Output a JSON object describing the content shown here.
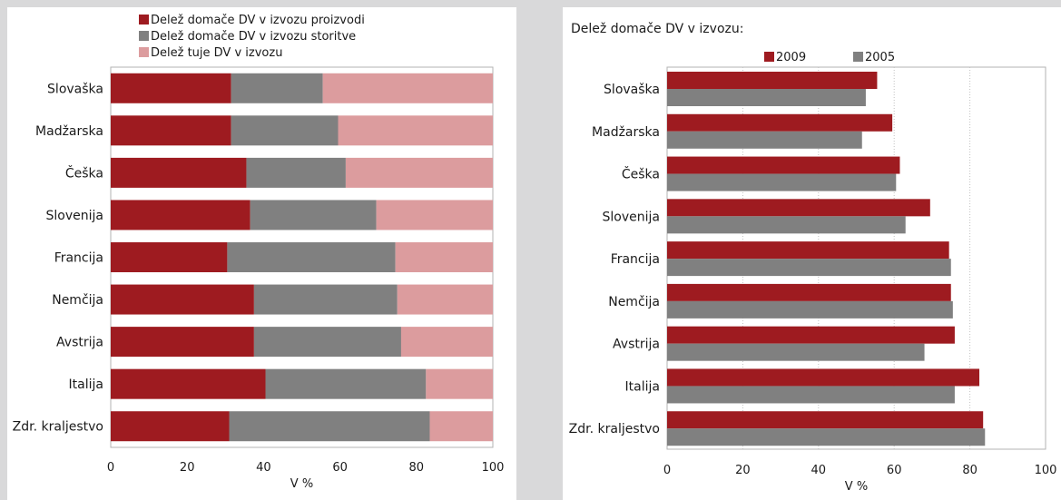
{
  "chart_data": [
    {
      "type": "bar",
      "orientation": "horizontal",
      "stacked": true,
      "categories": [
        "Slovaška",
        "Madžarska",
        "Češka",
        "Slovenija",
        "Francija",
        "Nemčija",
        "Avstrija",
        "Italija",
        "Zdr. kraljestvo"
      ],
      "series": [
        {
          "name": "Delež domače DV  v izvozu proizvodi",
          "color": "#9e1b20",
          "values": [
            31.5,
            31.5,
            35.5,
            36.5,
            30.5,
            37.5,
            37.5,
            40.5,
            31
          ]
        },
        {
          "name": "Delež domače DV  v izvozu storitve",
          "color": "#808080",
          "values": [
            24,
            28,
            26,
            33,
            44,
            37.5,
            38.5,
            42,
            52.5
          ]
        },
        {
          "name": "Delež tuje DV v izvozu",
          "color": "#dc9c9e",
          "values": [
            44.5,
            40.5,
            38.5,
            30.5,
            25.5,
            25,
            24,
            17.5,
            16.5
          ]
        }
      ],
      "xlim": [
        0,
        100
      ],
      "xticks": [
        0,
        20,
        40,
        60,
        80,
        100
      ],
      "xlabel": "V %",
      "legend": "top"
    },
    {
      "type": "bar",
      "orientation": "horizontal",
      "stacked": false,
      "title": "Delež domače DV  v izvozu:",
      "categories": [
        "Slovaška",
        "Madžarska",
        "Češka",
        "Slovenija",
        "Francija",
        "Nemčija",
        "Avstrija",
        "Italija",
        "Zdr. kraljestvo"
      ],
      "series": [
        {
          "name": "2009",
          "color": "#9e1b20",
          "values": [
            55.5,
            59.5,
            61.5,
            69.5,
            74.5,
            75,
            76,
            82.5,
            83.5
          ]
        },
        {
          "name": "2005",
          "color": "#808080",
          "values": [
            52.5,
            51.5,
            60.5,
            63,
            75,
            75.5,
            68,
            76,
            84
          ]
        }
      ],
      "xlim": [
        0,
        100
      ],
      "xticks": [
        0,
        20,
        40,
        60,
        80,
        100
      ],
      "xlabel": "V %",
      "grid": true,
      "legend": "top"
    }
  ]
}
